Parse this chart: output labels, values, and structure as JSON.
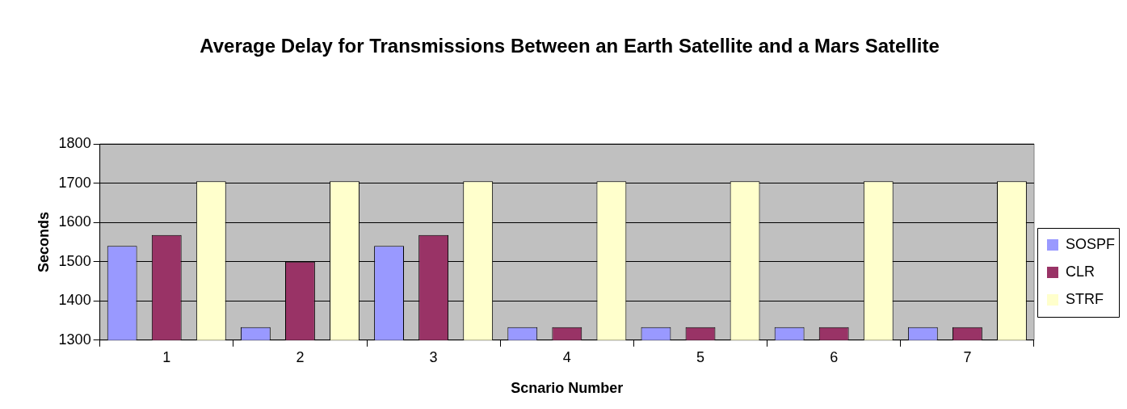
{
  "chart_data": {
    "type": "bar",
    "title": "Average Delay for Transmissions Between an Earth Satellite and a Mars Satellite",
    "xlabel": "Scnario Number",
    "ylabel": "Seconds",
    "categories": [
      "1",
      "2",
      "3",
      "4",
      "5",
      "6",
      "7"
    ],
    "series": [
      {
        "name": "SOSPF",
        "color": "#9999ff",
        "values": [
          1540,
          1333,
          1540,
          1333,
          1333,
          1333,
          1333
        ]
      },
      {
        "name": "CLR",
        "color": "#993366",
        "values": [
          1568,
          1500,
          1568,
          1333,
          1333,
          1333,
          1333
        ]
      },
      {
        "name": "STRF",
        "color": "#ffffcc",
        "values": [
          1705,
          1705,
          1705,
          1705,
          1705,
          1705,
          1705
        ]
      }
    ],
    "ylim": [
      1300,
      1800
    ],
    "yticks": [
      1300,
      1400,
      1500,
      1600,
      1700,
      1800
    ],
    "grid": "y",
    "legend": "right"
  }
}
